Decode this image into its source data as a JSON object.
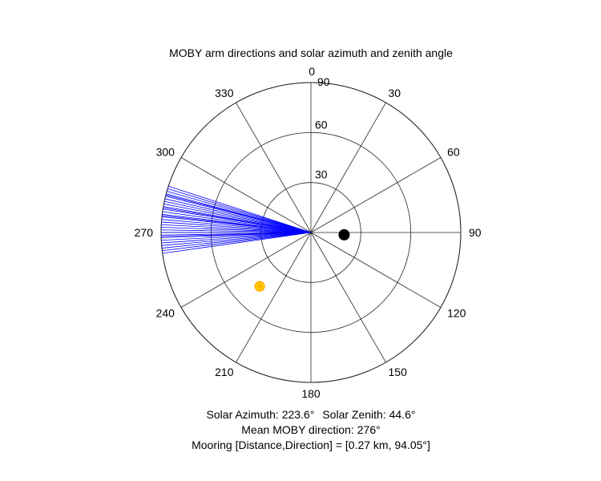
{
  "chart_data": {
    "type": "polar",
    "title": "MOBY arm directions and solar azimuth and zenith angle",
    "angle_ticks": [
      "0",
      "30",
      "60",
      "90",
      "120",
      "150",
      "180",
      "210",
      "240",
      "270",
      "300",
      "330"
    ],
    "angle_tick_values": [
      0,
      30,
      60,
      90,
      120,
      150,
      180,
      210,
      240,
      270,
      300,
      330
    ],
    "angle_convention": "clockwise from north",
    "radial_ticks": [
      "30",
      "60",
      "90"
    ],
    "radial_tick_values": [
      30,
      60,
      90
    ],
    "rlim": [
      0,
      90
    ],
    "grid": true,
    "series": [
      {
        "kind": "arm_directions",
        "color": "#0000ff",
        "radius": 90,
        "angles_deg": [
          262,
          263,
          264,
          265,
          266,
          267,
          268,
          268.5,
          269,
          270,
          271,
          272,
          273,
          274,
          275,
          276,
          276.5,
          277,
          278,
          279,
          279.5,
          280,
          281,
          282,
          283,
          284,
          284.5,
          285,
          286,
          287,
          288
        ]
      },
      {
        "kind": "solar_position",
        "color": "#ffd700",
        "edge_color": "#ffa500",
        "azimuth": 223.6,
        "zenith": 44.6
      },
      {
        "kind": "mooring",
        "color": "#000000",
        "direction": 94.05,
        "r": 20
      }
    ]
  },
  "captions": {
    "solar_azimuth": "Solar Azimuth: 223.6°",
    "solar_zenith": "Solar Zenith: 44.6°",
    "mean_direction": "Mean MOBY direction: 276°",
    "mooring": "Mooring [Distance,Direction] = [0.27 km, 94.05°]"
  }
}
